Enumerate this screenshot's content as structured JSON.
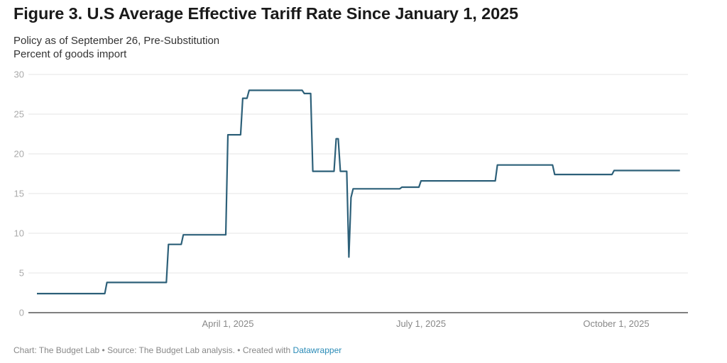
{
  "header": {
    "title": "Figure 3. U.S Average Effective Tariff Rate Since January 1, 2025",
    "subtitle_line1": "Policy as of September 26, Pre-Substitution",
    "subtitle_line2": "Percent of goods import"
  },
  "footer": {
    "text": "Chart: The Budget Lab • Source: The Budget Lab analysis. • Created with ",
    "link_text": "Datawrapper"
  },
  "colors": {
    "line": "#2d6079",
    "grid": "#e6e6e6",
    "axis": "#333333"
  },
  "chart_data": {
    "type": "line",
    "title": "Figure 3. U.S Average Effective Tariff Rate Since January 1, 2025",
    "subtitle": "Policy as of September 26, Pre-Substitution",
    "xlabel": "",
    "ylabel": "Percent of goods import",
    "x_unit": "days since January 1, 2025",
    "xlim": [
      0,
      303
    ],
    "ylim": [
      0,
      30
    ],
    "yticks": [
      0,
      5,
      10,
      15,
      20,
      25,
      30
    ],
    "ytick_labels": [
      "0",
      "5",
      "10",
      "15",
      "20",
      "25",
      "30"
    ],
    "xticks": [
      {
        "day": 90,
        "label": "April 1, 2025"
      },
      {
        "day": 181,
        "label": "July 1, 2025"
      },
      {
        "day": 273,
        "label": "October 1, 2025"
      }
    ],
    "grid": true,
    "legend": "none",
    "series": [
      {
        "name": "Average effective tariff rate",
        "x": [
          0,
          32,
          33,
          61,
          62,
          68,
          69,
          89,
          90,
          96,
          97,
          99,
          100,
          125,
          126,
          129,
          130,
          140,
          141,
          142,
          143,
          146,
          147,
          148,
          149,
          171,
          172,
          180,
          181,
          216,
          217,
          243,
          244,
          271,
          272,
          303
        ],
        "y": [
          2.4,
          2.4,
          3.8,
          3.8,
          8.6,
          8.6,
          9.8,
          9.8,
          22.4,
          22.4,
          27.0,
          27.0,
          28.0,
          28.0,
          27.6,
          27.6,
          17.8,
          17.8,
          21.9,
          21.9,
          17.8,
          17.8,
          7.0,
          14.5,
          15.6,
          15.6,
          15.8,
          15.8,
          16.6,
          16.6,
          18.6,
          18.6,
          17.4,
          17.4,
          17.9,
          17.9
        ]
      }
    ]
  }
}
